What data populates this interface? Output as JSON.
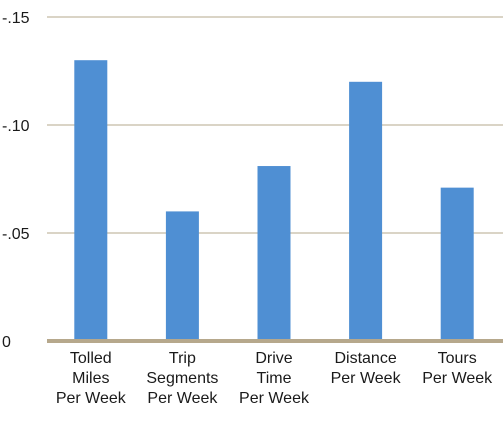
{
  "chart_data": {
    "type": "bar",
    "categories": [
      [
        "Tolled",
        "Miles",
        "Per Week"
      ],
      [
        "Trip",
        "Segments",
        "Per Week"
      ],
      [
        "Drive",
        "Time",
        "Per Week"
      ],
      [
        "Distance",
        "Per Week"
      ],
      [
        "Tours",
        "Per Week"
      ]
    ],
    "values": [
      0.13,
      0.06,
      0.081,
      0.12,
      0.071
    ],
    "y_ticks": [
      0,
      0.05,
      0.1,
      0.15
    ],
    "y_tick_labels": [
      "0",
      "-.05",
      "-.10",
      "-.15"
    ],
    "ylim": [
      0,
      0.15
    ],
    "grid": true,
    "colors": {
      "bar": "#4f8fd3",
      "grid": "#b6a88c",
      "baseline": "#b6a88c"
    }
  }
}
